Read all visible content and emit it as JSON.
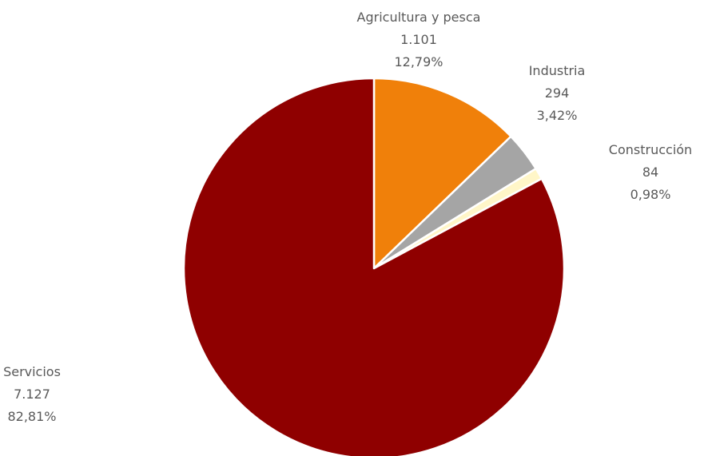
{
  "chart_data": {
    "type": "pie",
    "start_angle_deg": 0,
    "direction": "clockwise",
    "slices": [
      {
        "name": "Agricultura y pesca",
        "value": 1101,
        "value_label": "1.101",
        "percent": 12.79,
        "percent_label": "12,79%",
        "color": "#F0800A"
      },
      {
        "name": "Industria",
        "value": 294,
        "value_label": "294",
        "percent": 3.42,
        "percent_label": "3,42%",
        "color": "#A5A5A5"
      },
      {
        "name": "Construcción",
        "value": 84,
        "value_label": "84",
        "percent": 0.98,
        "percent_label": "0,98%",
        "color": "#FFF6C8"
      },
      {
        "name": "Servicios",
        "value": 7127,
        "value_label": "7.127",
        "percent": 82.81,
        "percent_label": "82,81%",
        "color": "#8F0000"
      }
    ],
    "legend": "none",
    "slice_border_color": "#FFFFFF"
  }
}
